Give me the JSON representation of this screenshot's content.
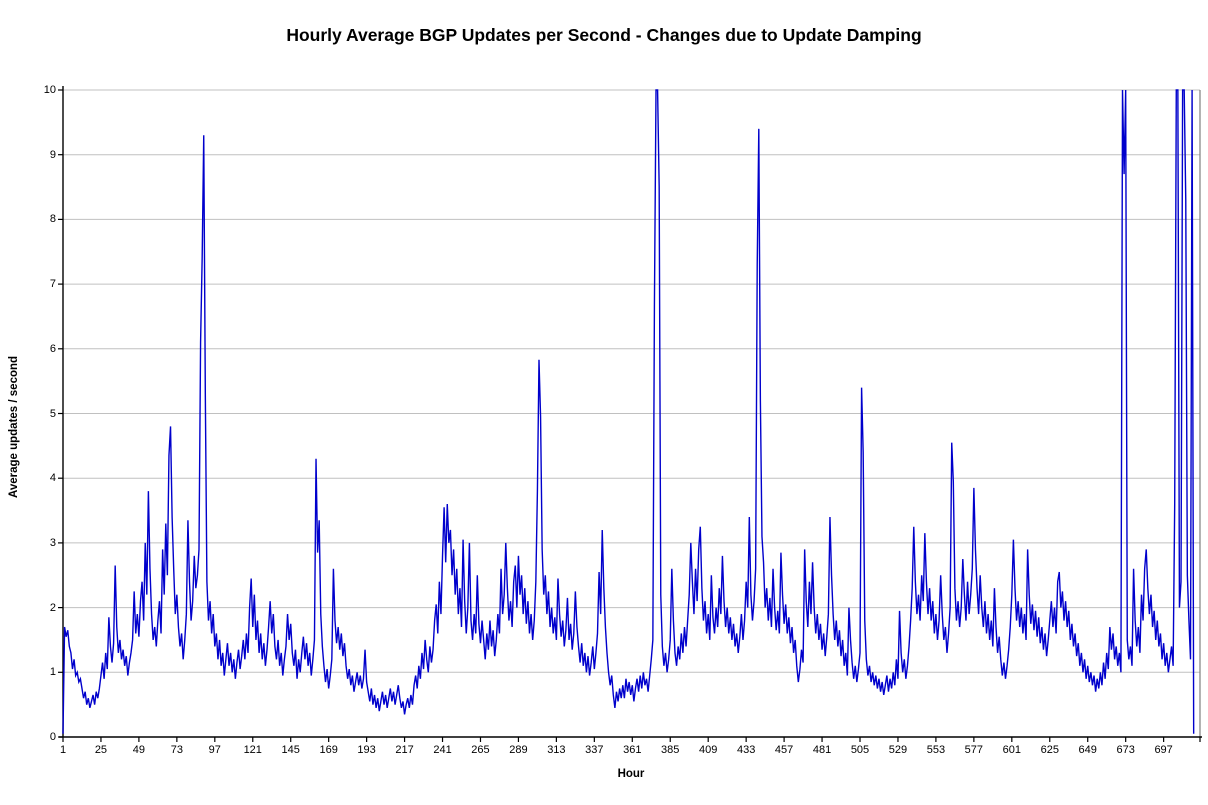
{
  "page": {
    "background_color": "#ffffff"
  },
  "chart_data": {
    "type": "line",
    "title": "Hourly Average BGP Updates per Second - Changes due to Update Damping",
    "xlabel": "Hour",
    "ylabel": "Average updates / second",
    "xlim": [
      1,
      720
    ],
    "ylim": [
      0,
      10
    ],
    "xticks": [
      1,
      25,
      49,
      73,
      97,
      121,
      145,
      169,
      193,
      217,
      241,
      265,
      289,
      313,
      337,
      361,
      385,
      409,
      433,
      457,
      481,
      505,
      529,
      553,
      577,
      601,
      625,
      649,
      673,
      697
    ],
    "yticks": [
      0,
      1,
      2,
      3,
      4,
      5,
      6,
      7,
      8,
      9,
      10
    ],
    "grid": "horizontal-only",
    "legend": "none",
    "line_color": "#0000CC",
    "gridline_color": "#C0C0C0",
    "axis_color": "#000000",
    "plot_border_color": "#808080",
    "clipping_note": "Spikes near hours 375-377, 671-673, 705-710 and 715 exceed the axis maximum and are clipped at y=10",
    "x_start_hour": 1,
    "values": [
      0.05,
      1.7,
      1.55,
      1.65,
      1.4,
      1.3,
      1.05,
      1.2,
      0.95,
      1.0,
      0.85,
      0.9,
      0.75,
      0.6,
      0.7,
      0.5,
      0.6,
      0.45,
      0.55,
      0.65,
      0.5,
      0.7,
      0.6,
      0.75,
      0.95,
      1.15,
      0.9,
      1.3,
      1.05,
      1.85,
      1.4,
      1.15,
      1.45,
      2.65,
      1.7,
      1.3,
      1.5,
      1.2,
      1.35,
      1.1,
      1.25,
      0.95,
      1.15,
      1.3,
      1.5,
      2.25,
      1.6,
      1.9,
      1.55,
      2.1,
      2.4,
      1.8,
      3.0,
      2.2,
      3.8,
      2.6,
      1.9,
      1.5,
      1.7,
      1.4,
      1.8,
      2.1,
      1.6,
      2.9,
      2.2,
      3.3,
      2.5,
      4.35,
      4.8,
      3.4,
      2.6,
      1.9,
      2.2,
      1.7,
      1.4,
      1.6,
      1.2,
      1.5,
      1.9,
      3.35,
      2.4,
      1.8,
      2.1,
      2.8,
      2.3,
      2.5,
      2.9,
      6.1,
      7.4,
      9.3,
      5.3,
      2.4,
      1.8,
      2.1,
      1.6,
      1.9,
      1.4,
      1.6,
      1.2,
      1.5,
      1.1,
      1.3,
      0.95,
      1.2,
      1.45,
      1.1,
      1.3,
      1.0,
      1.2,
      0.9,
      1.15,
      1.35,
      1.05,
      1.25,
      1.5,
      1.2,
      1.6,
      1.3,
      2.0,
      2.45,
      1.7,
      2.2,
      1.5,
      1.8,
      1.3,
      1.6,
      1.2,
      1.45,
      1.1,
      1.35,
      1.7,
      2.1,
      1.6,
      1.9,
      1.4,
      1.2,
      1.5,
      1.1,
      1.3,
      0.95,
      1.2,
      1.4,
      1.9,
      1.5,
      1.75,
      1.3,
      1.1,
      1.35,
      0.9,
      1.2,
      1.0,
      1.3,
      1.55,
      1.2,
      1.45,
      1.1,
      1.3,
      0.95,
      1.2,
      1.5,
      4.3,
      2.85,
      3.35,
      1.9,
      1.4,
      1.1,
      0.85,
      1.05,
      0.75,
      0.95,
      1.2,
      2.6,
      1.8,
      1.45,
      1.7,
      1.35,
      1.6,
      1.25,
      1.45,
      1.1,
      0.9,
      1.05,
      0.8,
      0.95,
      0.7,
      0.85,
      1.0,
      0.8,
      0.95,
      0.75,
      0.9,
      1.35,
      0.85,
      0.7,
      0.55,
      0.75,
      0.5,
      0.65,
      0.45,
      0.6,
      0.4,
      0.55,
      0.7,
      0.5,
      0.65,
      0.45,
      0.6,
      0.75,
      0.55,
      0.7,
      0.5,
      0.65,
      0.8,
      0.6,
      0.45,
      0.55,
      0.35,
      0.5,
      0.6,
      0.45,
      0.65,
      0.5,
      0.8,
      0.95,
      0.75,
      1.1,
      0.9,
      1.3,
      1.05,
      1.5,
      1.2,
      1.0,
      1.4,
      1.15,
      1.35,
      1.8,
      2.05,
      1.6,
      2.4,
      1.9,
      2.8,
      3.55,
      2.7,
      3.6,
      3.0,
      3.2,
      2.5,
      2.9,
      2.2,
      2.6,
      1.9,
      2.3,
      1.7,
      3.05,
      2.1,
      1.6,
      2.0,
      3.0,
      1.8,
      1.5,
      1.9,
      1.6,
      2.5,
      1.75,
      1.45,
      1.8,
      1.5,
      1.2,
      1.6,
      1.35,
      1.8,
      1.4,
      1.65,
      1.25,
      1.5,
      1.9,
      1.6,
      2.6,
      1.9,
      2.2,
      3.0,
      2.3,
      1.8,
      2.1,
      1.7,
      2.4,
      2.65,
      2.0,
      2.8,
      2.2,
      2.5,
      1.9,
      2.3,
      1.75,
      2.1,
      1.6,
      1.9,
      1.5,
      1.8,
      2.4,
      3.8,
      5.83,
      4.95,
      2.9,
      2.2,
      2.5,
      1.9,
      2.25,
      1.7,
      2.0,
      1.6,
      1.85,
      1.5,
      2.45,
      1.9,
      1.55,
      1.8,
      1.4,
      1.65,
      2.15,
      1.5,
      1.75,
      1.35,
      1.6,
      2.25,
      1.7,
      1.4,
      1.15,
      1.45,
      1.1,
      1.3,
      1.0,
      1.25,
      0.95,
      1.15,
      1.4,
      1.05,
      1.3,
      1.6,
      2.55,
      1.9,
      3.2,
      2.3,
      1.7,
      1.3,
      1.0,
      0.8,
      0.95,
      0.65,
      0.45,
      0.7,
      0.55,
      0.75,
      0.6,
      0.8,
      0.6,
      0.9,
      0.7,
      0.85,
      0.65,
      0.8,
      0.55,
      0.75,
      0.9,
      0.7,
      0.95,
      0.75,
      1.0,
      0.8,
      0.9,
      0.7,
      0.95,
      1.2,
      1.5,
      6.7,
      10,
      10,
      8.5,
      2.2,
      1.4,
      1.1,
      1.3,
      1.0,
      1.2,
      1.5,
      2.6,
      1.8,
      1.3,
      1.1,
      1.4,
      1.2,
      1.6,
      1.3,
      1.7,
      1.4,
      1.8,
      2.2,
      3.0,
      2.4,
      1.9,
      2.6,
      2.1,
      2.9,
      3.25,
      2.3,
      1.8,
      2.1,
      1.6,
      1.9,
      1.5,
      2.5,
      1.85,
      1.6,
      2.0,
      1.7,
      2.3,
      1.9,
      2.8,
      2.1,
      1.7,
      2.0,
      1.6,
      1.85,
      1.5,
      1.75,
      1.4,
      1.6,
      1.3,
      1.55,
      1.9,
      1.5,
      1.8,
      2.4,
      2.0,
      3.4,
      2.2,
      1.8,
      2.1,
      2.6,
      7.3,
      9.4,
      5.2,
      3.1,
      2.7,
      2.0,
      2.3,
      1.8,
      2.15,
      1.7,
      2.6,
      2.0,
      1.65,
      1.95,
      1.6,
      2.85,
      2.2,
      1.75,
      2.05,
      1.6,
      1.85,
      1.45,
      1.7,
      1.3,
      1.5,
      1.1,
      0.85,
      1.05,
      1.35,
      1.15,
      2.9,
      2.1,
      1.7,
      2.4,
      1.9,
      2.7,
      2.0,
      1.6,
      1.9,
      1.5,
      1.75,
      1.35,
      1.6,
      1.25,
      1.55,
      1.9,
      3.4,
      2.5,
      1.9,
      1.5,
      1.8,
      1.4,
      1.65,
      1.25,
      1.5,
      1.1,
      1.3,
      0.95,
      2.0,
      1.5,
      1.15,
      0.9,
      1.1,
      0.85,
      1.05,
      1.3,
      5.4,
      4.4,
      1.8,
      1.2,
      0.95,
      1.1,
      0.85,
      1.0,
      0.8,
      0.95,
      0.75,
      0.9,
      0.7,
      0.85,
      0.65,
      0.8,
      0.95,
      0.7,
      0.9,
      0.75,
      1.0,
      0.8,
      1.2,
      0.9,
      1.95,
      1.3,
      1.0,
      1.2,
      0.9,
      1.1,
      1.4,
      1.8,
      2.3,
      3.25,
      2.4,
      1.9,
      2.2,
      1.8,
      2.5,
      2.1,
      3.15,
      2.4,
      1.9,
      2.3,
      1.8,
      2.1,
      1.6,
      1.9,
      1.5,
      1.8,
      2.5,
      1.9,
      1.5,
      1.7,
      1.3,
      1.6,
      2.0,
      4.55,
      3.95,
      2.3,
      1.8,
      2.1,
      1.7,
      2.0,
      2.75,
      2.2,
      1.8,
      2.4,
      1.9,
      2.2,
      2.6,
      3.85,
      2.9,
      2.3,
      1.9,
      2.5,
      2.0,
      1.7,
      2.1,
      1.6,
      1.9,
      1.5,
      1.8,
      1.4,
      2.3,
      1.7,
      1.3,
      1.55,
      1.2,
      0.95,
      1.15,
      0.9,
      1.1,
      1.35,
      1.7,
      2.2,
      3.05,
      2.3,
      1.8,
      2.1,
      1.7,
      2.0,
      1.6,
      1.9,
      1.5,
      2.9,
      2.2,
      1.75,
      2.05,
      1.65,
      1.95,
      1.55,
      1.85,
      1.45,
      1.7,
      1.35,
      1.6,
      1.25,
      1.5,
      1.8,
      2.1,
      1.7,
      2.0,
      1.6,
      2.4,
      2.55,
      2.0,
      2.25,
      1.8,
      2.1,
      1.7,
      1.95,
      1.5,
      1.75,
      1.4,
      1.6,
      1.25,
      1.45,
      1.1,
      1.3,
      1.0,
      1.2,
      0.9,
      1.1,
      0.85,
      1.0,
      0.8,
      0.95,
      0.7,
      0.9,
      0.75,
      1.0,
      0.8,
      1.15,
      0.9,
      1.3,
      1.05,
      1.7,
      1.35,
      1.6,
      1.2,
      1.4,
      1.1,
      1.3,
      1.0,
      10,
      8.7,
      10,
      1.5,
      1.2,
      1.4,
      1.1,
      2.6,
      1.8,
      1.4,
      1.7,
      1.3,
      2.2,
      1.8,
      2.6,
      2.9,
      2.3,
      1.9,
      2.2,
      1.7,
      1.95,
      1.5,
      1.8,
      1.4,
      1.6,
      1.2,
      1.45,
      1.1,
      1.3,
      1.0,
      1.2,
      1.4,
      1.1,
      3.6,
      10,
      10,
      2.0,
      2.4,
      10,
      10,
      8.3,
      2.5,
      1.8,
      1.2,
      10,
      0.05
    ]
  }
}
